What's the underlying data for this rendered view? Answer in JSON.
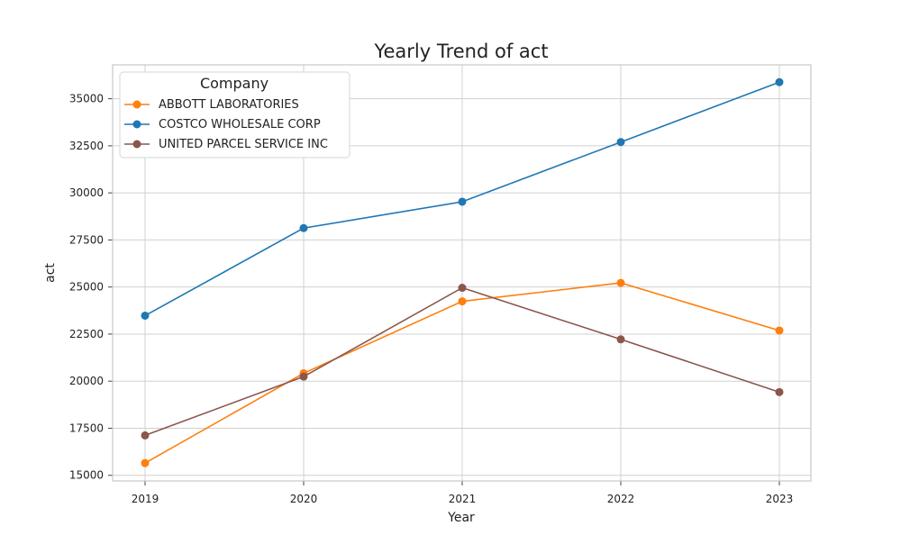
{
  "chart_data": {
    "type": "line",
    "title": "Yearly Trend of act",
    "xlabel": "Year",
    "ylabel": "act",
    "categories": [
      "2019",
      "2020",
      "2021",
      "2022",
      "2023"
    ],
    "ylim": [
      14700,
      36800
    ],
    "y_ticks": [
      "15000",
      "17500",
      "20000",
      "22500",
      "25000",
      "27500",
      "30000",
      "32500",
      "35000"
    ],
    "grid": true,
    "legend": {
      "title": "Company",
      "placement": "top-left"
    },
    "series": [
      {
        "name": "ABBOTT LABORATORIES",
        "color": "#ff7f0e",
        "values": [
          15650,
          20420,
          24240,
          25220,
          22690
        ]
      },
      {
        "name": "COSTCO WHOLESALE CORP",
        "color": "#1f77b4",
        "values": [
          23480,
          28130,
          29530,
          32700,
          35880
        ]
      },
      {
        "name": "UNITED PARCEL SERVICE INC",
        "color": "#8c564b",
        "values": [
          17120,
          20240,
          24960,
          22220,
          19420
        ]
      }
    ]
  }
}
